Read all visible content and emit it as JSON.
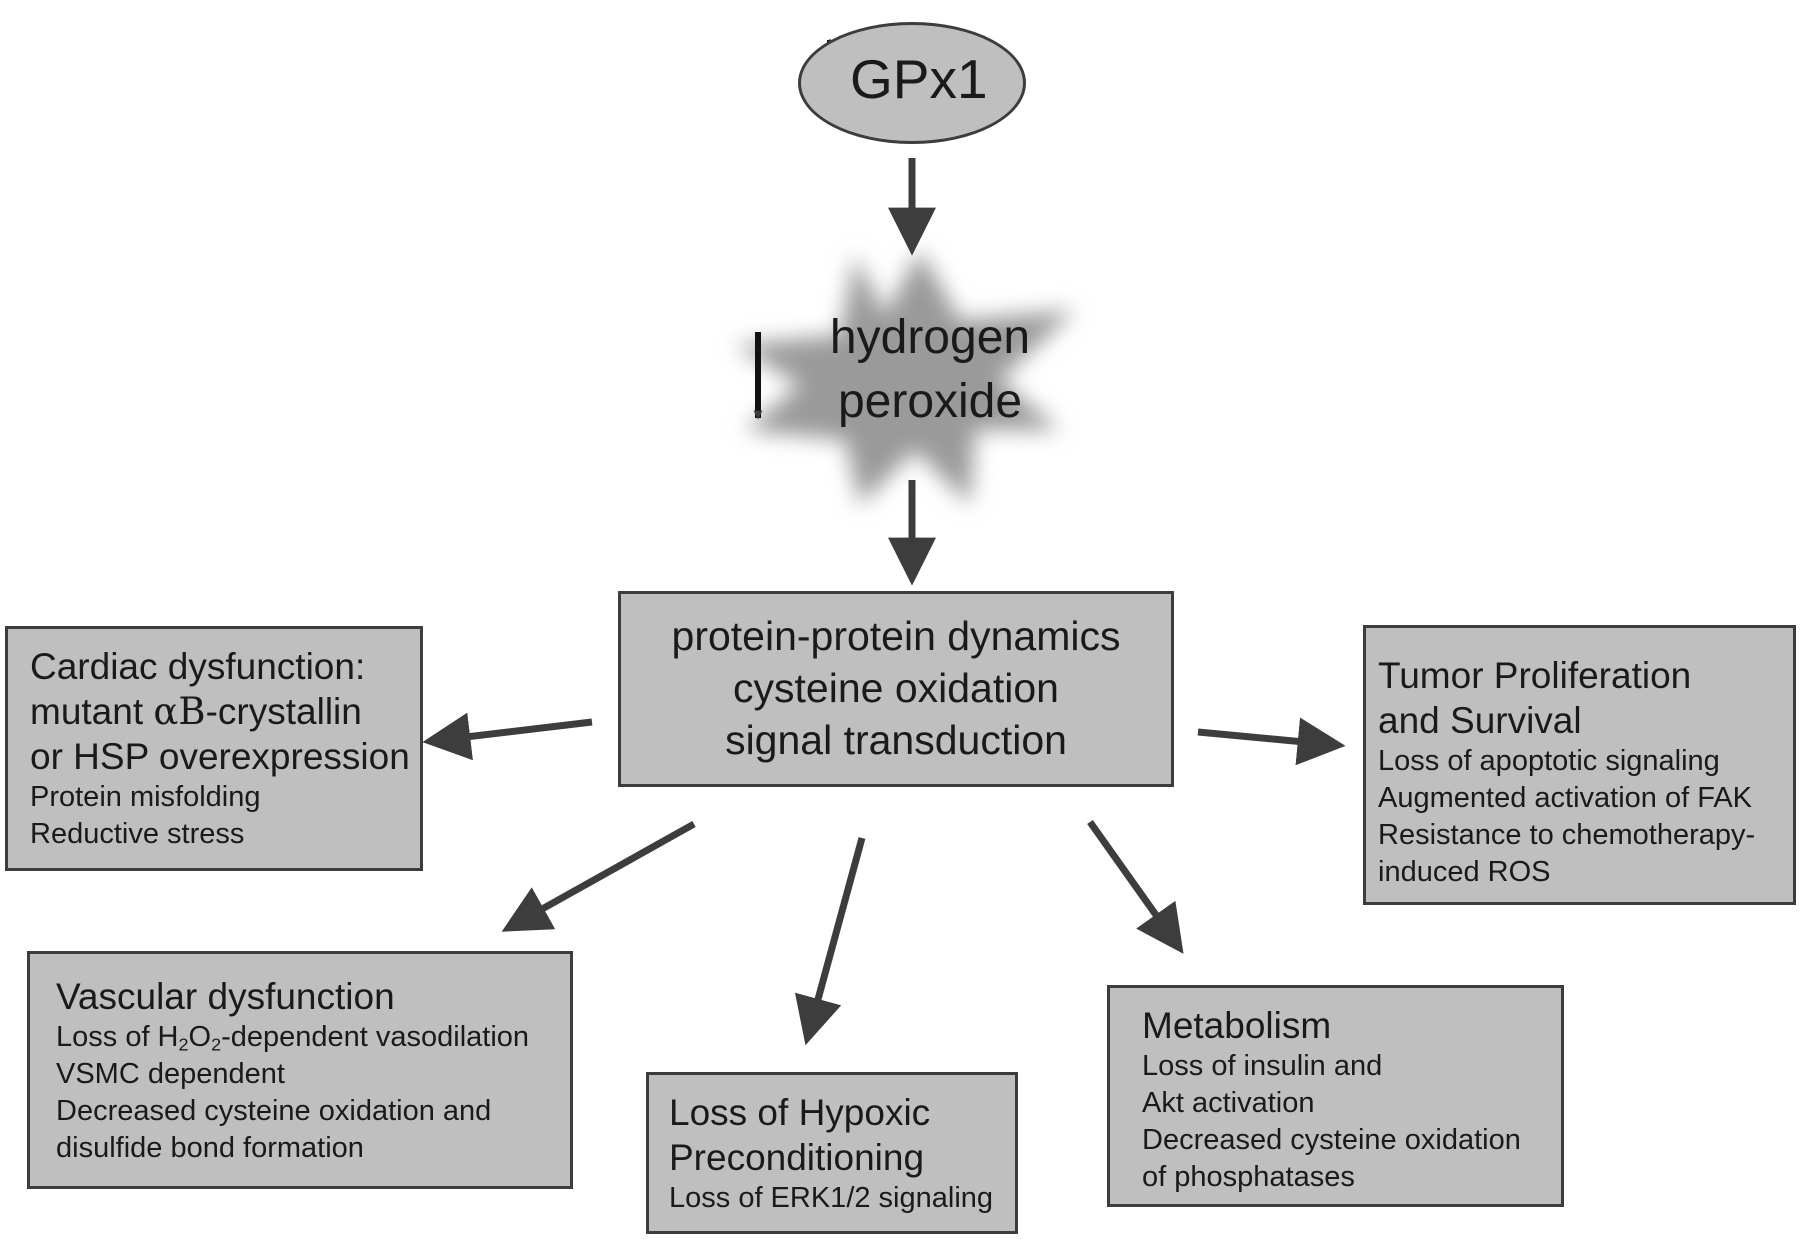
{
  "top": {
    "label": "GPx1",
    "direction": "up"
  },
  "middle": {
    "line1": "hydrogen",
    "line2": "peroxide",
    "direction": "down"
  },
  "center": {
    "lines": [
      "protein-protein dynamics",
      "cysteine oxidation",
      "signal transduction"
    ]
  },
  "cardiac": {
    "line1": "Cardiac dysfunction:",
    "line2_pre": "mutant ",
    "line2_greek": "αB",
    "line2_post": "-crystallin",
    "line3": "or HSP overexpression",
    "item1": "Protein misfolding",
    "item2": "Reductive stress"
  },
  "tumor": {
    "line1": "Tumor Proliferation",
    "line2": "and Survival",
    "item1": "Loss of apoptotic signaling",
    "item2": "Augmented activation of FAK",
    "item3": "Resistance to chemotherapy-",
    "item4": "induced ROS"
  },
  "vascular": {
    "title": "Vascular dysfunction",
    "item1_pre": "Loss of H",
    "item1_sub1": "2",
    "item1_mid": "O",
    "item1_sub2": "2",
    "item1_post": "-dependent vasodilation",
    "item2": "VSMC dependent",
    "item3": "Decreased cysteine oxidation and",
    "item4": "disulfide bond formation"
  },
  "hypoxic": {
    "line1": "Loss of Hypoxic",
    "line2": "Preconditioning",
    "item1": "Loss of ERK1/2 signaling"
  },
  "metabolism": {
    "title": "Metabolism",
    "item1": "Loss of insulin and",
    "item2": "Akt activation",
    "item3": "Decreased cysteine oxidation",
    "item4": "of phosphatases"
  }
}
